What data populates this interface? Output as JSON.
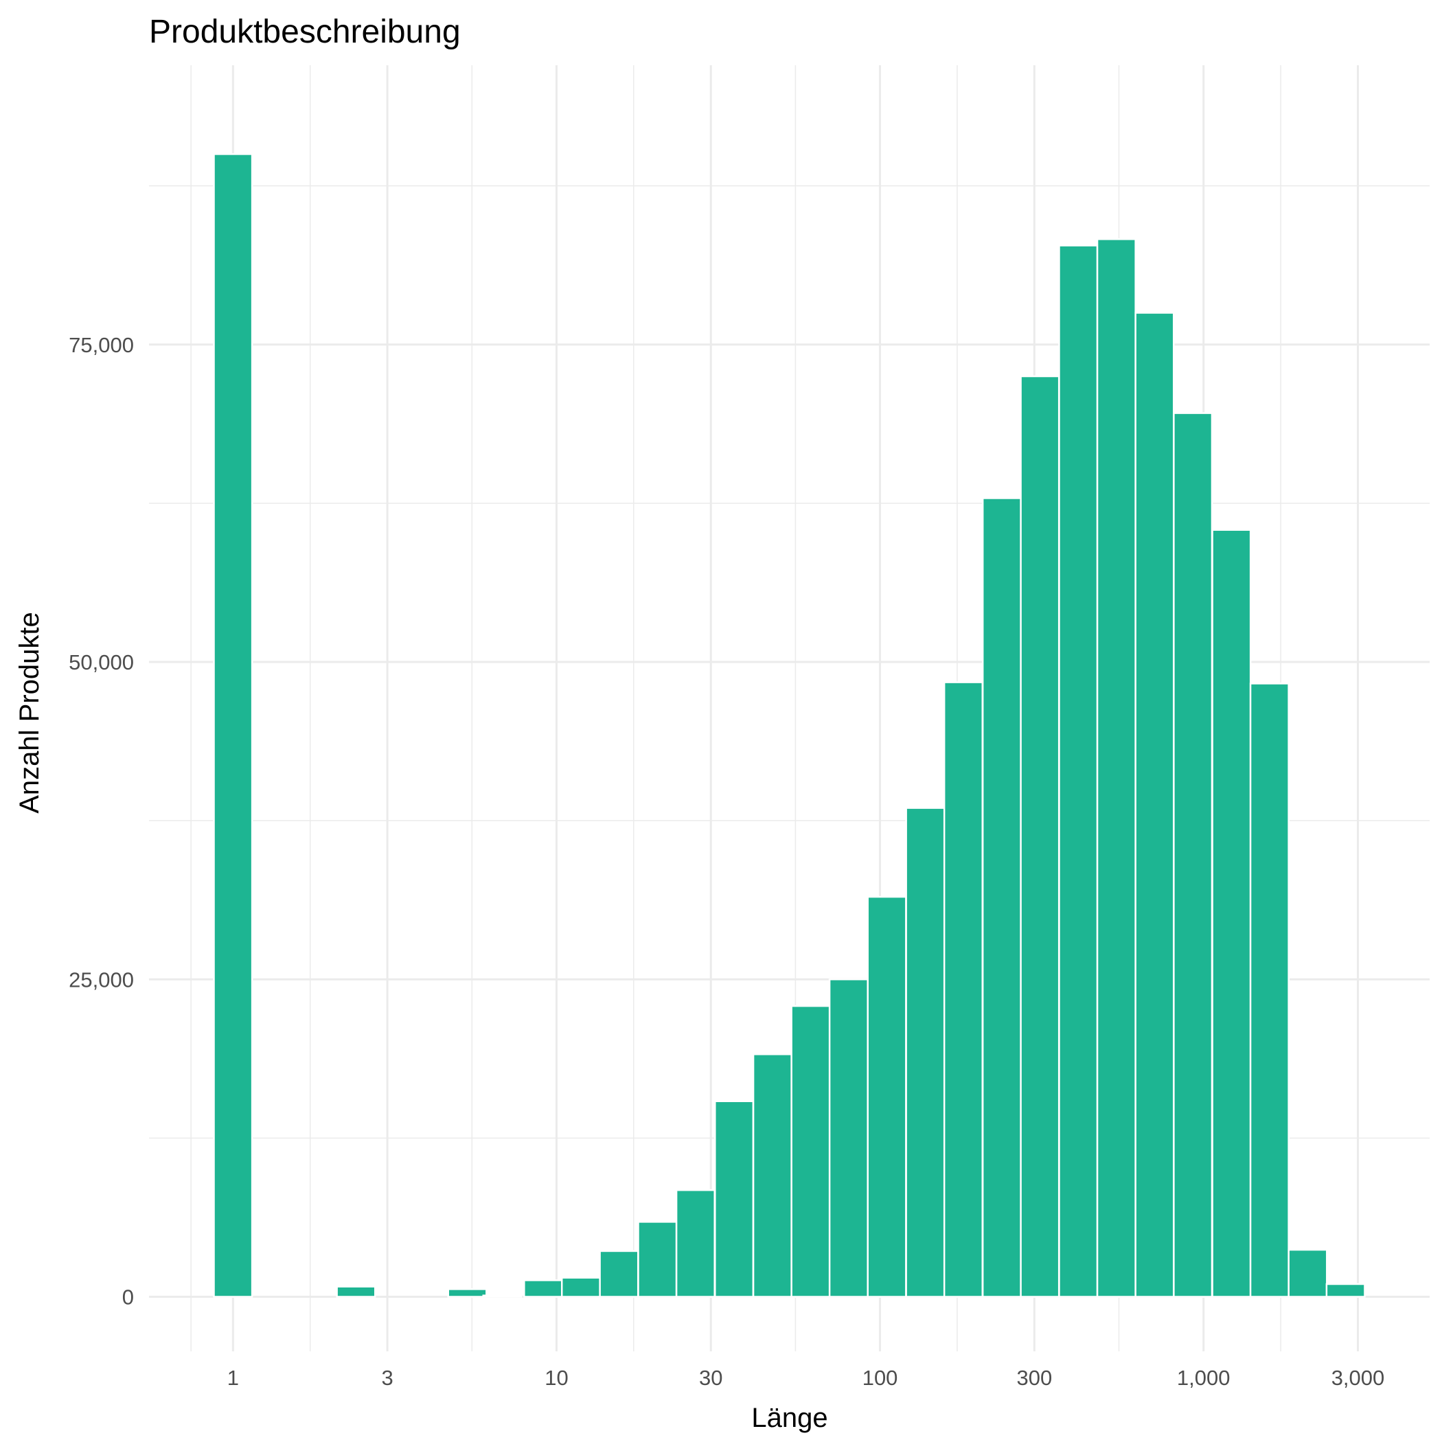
{
  "chart_data": {
    "type": "bar",
    "title": "Produktbeschreibung",
    "xlabel": "Länge",
    "ylabel": "Anzahl Produkte",
    "x_scale": "log10",
    "xlim": [
      0.55,
      5000
    ],
    "ylim": [
      -4300,
      97000
    ],
    "grid": true,
    "legend": "none",
    "bar_color": "#1db592",
    "x_ticks": [
      {
        "value": 1,
        "label": "1"
      },
      {
        "value": 3,
        "label": "3"
      },
      {
        "value": 10,
        "label": "10"
      },
      {
        "value": 30,
        "label": "30"
      },
      {
        "value": 100,
        "label": "100"
      },
      {
        "value": 300,
        "label": "300"
      },
      {
        "value": 1000,
        "label": "1,000"
      },
      {
        "value": 3000,
        "label": "3,000"
      }
    ],
    "y_ticks": [
      {
        "value": 0,
        "label": "0"
      },
      {
        "value": 25000,
        "label": "25,000"
      },
      {
        "value": 50000,
        "label": "50,000"
      },
      {
        "value": 75000,
        "label": "75,000"
      }
    ],
    "bins": [
      {
        "x": 1.0,
        "count": 90000
      },
      {
        "x": 2.4,
        "count": 800
      },
      {
        "x": 5.3,
        "count": 600
      },
      {
        "x": 6.8,
        "count": 100
      },
      {
        "x": 9.1,
        "count": 1300
      },
      {
        "x": 11.9,
        "count": 1500
      },
      {
        "x": 15.6,
        "count": 3600
      },
      {
        "x": 20.5,
        "count": 5900
      },
      {
        "x": 26.9,
        "count": 8400
      },
      {
        "x": 35.4,
        "count": 15400
      },
      {
        "x": 46.5,
        "count": 19100
      },
      {
        "x": 61.0,
        "count": 22900
      },
      {
        "x": 80.0,
        "count": 25000
      },
      {
        "x": 105.0,
        "count": 31500
      },
      {
        "x": 138.0,
        "count": 38500
      },
      {
        "x": 181.0,
        "count": 48400
      },
      {
        "x": 238.0,
        "count": 62900
      },
      {
        "x": 312.0,
        "count": 72500
      },
      {
        "x": 410.0,
        "count": 82800
      },
      {
        "x": 538.0,
        "count": 83300
      },
      {
        "x": 706.0,
        "count": 77500
      },
      {
        "x": 927.0,
        "count": 69600
      },
      {
        "x": 1220.0,
        "count": 60400
      },
      {
        "x": 1600.0,
        "count": 48300
      },
      {
        "x": 2100.0,
        "count": 3700
      },
      {
        "x": 2750.0,
        "count": 1000
      }
    ]
  }
}
